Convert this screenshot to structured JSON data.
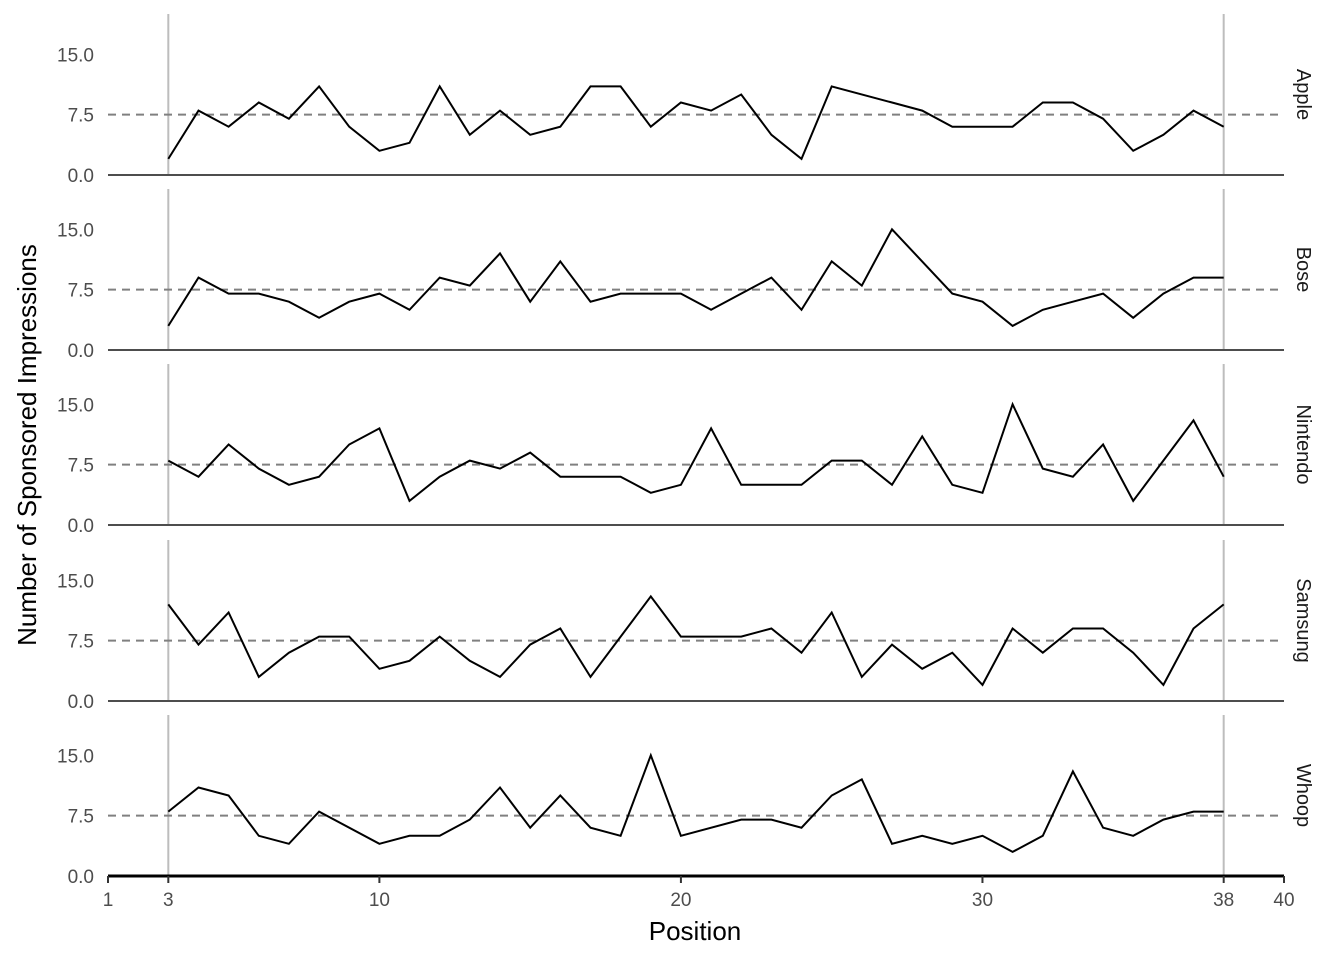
{
  "chart_data": {
    "type": "line",
    "xlabel": "Position",
    "ylabel": "Number of Sponsored Impressions",
    "xlim": [
      1,
      40
    ],
    "ylim": [
      0,
      20
    ],
    "x_ticks": [
      1,
      3,
      10,
      20,
      30,
      38,
      40
    ],
    "y_ticks": [
      0,
      7.5,
      15
    ],
    "y_tick_labels": [
      "0.0",
      "7.5",
      "15.0"
    ],
    "reference_line": 7.5,
    "vertical_lines": [
      3,
      38
    ],
    "grid": false,
    "line_color": "#000000",
    "reference_line_color": "#808080",
    "facets": [
      {
        "name": "Apple",
        "x": [
          3,
          4,
          5,
          6,
          7,
          8,
          9,
          10,
          11,
          12,
          13,
          14,
          15,
          16,
          17,
          18,
          19,
          20,
          21,
          22,
          23,
          24,
          25,
          28,
          29,
          30,
          31,
          32,
          33,
          34,
          35,
          36,
          37,
          38
        ],
        "values": [
          2,
          8,
          6,
          9,
          7,
          11,
          6,
          3,
          4,
          11,
          5,
          8,
          5,
          6,
          11,
          11,
          6,
          9,
          8,
          10,
          5,
          2,
          11,
          8,
          6,
          6,
          6,
          9,
          9,
          7,
          3,
          5,
          8,
          6
        ]
      },
      {
        "name": "Bose",
        "x": [
          3,
          4,
          5,
          6,
          7,
          8,
          9,
          10,
          11,
          12,
          13,
          14,
          15,
          16,
          17,
          18,
          19,
          20,
          21,
          22,
          23,
          24,
          25,
          26,
          27,
          29,
          30,
          31,
          32,
          33,
          34,
          35,
          36,
          37,
          38
        ],
        "values": [
          3,
          9,
          7,
          7,
          6,
          4,
          6,
          7,
          5,
          9,
          8,
          12,
          6,
          11,
          6,
          7,
          7,
          7,
          5,
          7,
          9,
          5,
          11,
          8,
          15,
          7,
          6,
          3,
          5,
          6,
          7,
          4,
          7,
          9,
          9
        ]
      },
      {
        "name": "Nintendo",
        "x": [
          3,
          4,
          5,
          6,
          7,
          8,
          9,
          10,
          11,
          12,
          13,
          14,
          15,
          16,
          17,
          18,
          19,
          20,
          21,
          22,
          23,
          24,
          25,
          26,
          27,
          28,
          29,
          30,
          31,
          32,
          33,
          34,
          35,
          37,
          38
        ],
        "values": [
          8,
          6,
          10,
          7,
          5,
          6,
          10,
          12,
          3,
          6,
          8,
          7,
          9,
          6,
          6,
          6,
          4,
          5,
          12,
          5,
          5,
          5,
          8,
          8,
          5,
          11,
          5,
          4,
          15,
          7,
          6,
          10,
          3,
          13,
          6
        ]
      },
      {
        "name": "Samsung",
        "x": [
          3,
          4,
          5,
          6,
          7,
          8,
          9,
          10,
          11,
          12,
          13,
          14,
          15,
          16,
          17,
          19,
          20,
          21,
          22,
          23,
          24,
          25,
          26,
          27,
          28,
          29,
          30,
          31,
          32,
          33,
          34,
          35,
          36,
          37,
          38
        ],
        "values": [
          12,
          7,
          11,
          3,
          6,
          8,
          8,
          4,
          5,
          8,
          5,
          3,
          7,
          9,
          3,
          13,
          8,
          8,
          8,
          9,
          6,
          11,
          3,
          7,
          4,
          6,
          2,
          9,
          6,
          9,
          9,
          6,
          2,
          9,
          12
        ]
      },
      {
        "name": "Whoop",
        "x": [
          3,
          4,
          5,
          6,
          7,
          8,
          10,
          11,
          12,
          13,
          14,
          15,
          16,
          17,
          18,
          19,
          20,
          22,
          23,
          24,
          25,
          26,
          27,
          28,
          29,
          30,
          31,
          32,
          33,
          34,
          35,
          36,
          37,
          38
        ],
        "values": [
          8,
          11,
          10,
          5,
          4,
          8,
          4,
          5,
          5,
          7,
          11,
          6,
          10,
          6,
          5,
          15,
          5,
          7,
          7,
          6,
          10,
          12,
          4,
          5,
          4,
          5,
          3,
          5,
          13,
          6,
          5,
          7,
          8,
          8
        ]
      }
    ]
  }
}
